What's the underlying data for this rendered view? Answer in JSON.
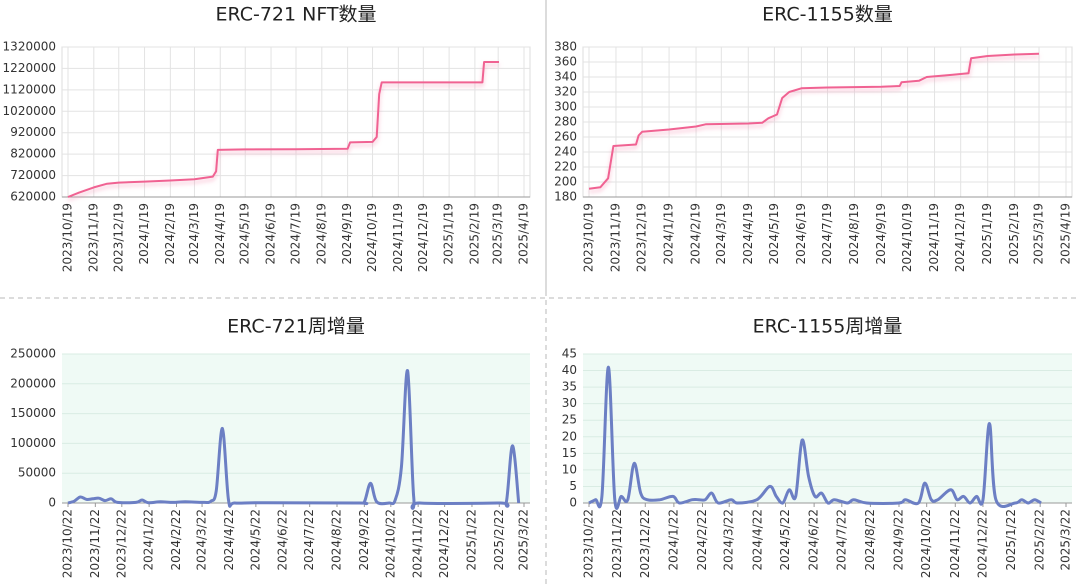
{
  "chart_data": [
    {
      "type": "line",
      "title": "ERC-721 NFT数量",
      "color": "#f06292",
      "smooth": false,
      "grid": "both",
      "x": [
        "2023/10/19",
        "2023/11/1",
        "2023/11/19",
        "2023/12/5",
        "2023/12/19",
        "2024/1/19",
        "2024/2/19",
        "2024/3/19",
        "2024/4/10",
        "2024/4/14",
        "2024/4/16",
        "2024/5/19",
        "2024/7/19",
        "2024/9/19",
        "2024/9/22",
        "2024/10/19",
        "2024/10/24",
        "2024/10/27",
        "2024/10/30",
        "2025/2/28",
        "2025/3/2",
        "2025/3/20"
      ],
      "values": [
        620000,
        640000,
        665000,
        682000,
        687000,
        692000,
        697000,
        703000,
        715000,
        740000,
        840000,
        842000,
        843000,
        845000,
        875000,
        877000,
        900000,
        1100000,
        1155000,
        1155000,
        1250000,
        1250000
      ],
      "xlim": [
        "2023/10/19",
        "2025/4/19"
      ],
      "xticks": [
        "2023/10/19",
        "2023/11/19",
        "2023/12/19",
        "2024/1/19",
        "2024/2/19",
        "2024/3/19",
        "2024/4/19",
        "2024/5/19",
        "2024/6/19",
        "2024/7/19",
        "2024/8/19",
        "2024/9/19",
        "2024/10/19",
        "2024/11/19",
        "2024/12/19",
        "2025/1/19",
        "2025/2/19",
        "2025/3/19",
        "2025/4/19"
      ],
      "ylim": [
        620000,
        1320000
      ],
      "yticks": [
        620000,
        720000,
        820000,
        920000,
        1020000,
        1120000,
        1220000,
        1320000
      ]
    },
    {
      "type": "line",
      "title": "ERC-1155数量",
      "color": "#f06292",
      "smooth": false,
      "grid": "both",
      "x": [
        "2023/10/19",
        "2023/11/1",
        "2023/11/10",
        "2023/11/16",
        "2023/12/12",
        "2023/12/15",
        "2023/12/19",
        "2024/1/19",
        "2024/2/19",
        "2024/3/1",
        "2024/4/19",
        "2024/5/5",
        "2024/5/12",
        "2024/5/22",
        "2024/5/28",
        "2024/6/5",
        "2024/6/19",
        "2024/7/19",
        "2024/9/19",
        "2024/10/10",
        "2024/10/12",
        "2024/11/1",
        "2024/11/10",
        "2024/12/10",
        "2024/12/28",
        "2024/12/31",
        "2025/1/19",
        "2025/2/19",
        "2025/3/19"
      ],
      "values": [
        191,
        193,
        205,
        248,
        250,
        262,
        267,
        270,
        274,
        277,
        278,
        279,
        285,
        290,
        312,
        320,
        325,
        326,
        327,
        328,
        333,
        335,
        340,
        343,
        345,
        365,
        368,
        370,
        371
      ],
      "xlim": [
        "2023/10/19",
        "2025/4/19"
      ],
      "xticks": [
        "2023/10/19",
        "2023/11/19",
        "2023/12/19",
        "2024/1/19",
        "2024/2/19",
        "2024/3/19",
        "2024/4/19",
        "2024/5/19",
        "2024/6/19",
        "2024/7/19",
        "2024/8/19",
        "2024/9/19",
        "2024/10/19",
        "2024/11/19",
        "2024/12/19",
        "2025/1/19",
        "2025/2/19",
        "2025/3/19",
        "2025/4/19"
      ],
      "ylim": [
        180,
        380
      ],
      "yticks": [
        180,
        200,
        220,
        240,
        260,
        280,
        300,
        320,
        340,
        360,
        380
      ]
    },
    {
      "type": "line",
      "title": "ERC-721周增量",
      "color": "#6c7fc4",
      "smooth": true,
      "grid": "y",
      "x": [
        "2023/10/22",
        "2023/10/29",
        "2023/11/5",
        "2023/11/12",
        "2023/11/19",
        "2023/11/26",
        "2023/12/3",
        "2023/12/10",
        "2023/12/17",
        "2024/1/7",
        "2024/1/14",
        "2024/1/21",
        "2024/2/4",
        "2024/2/18",
        "2024/3/3",
        "2024/3/24",
        "2024/4/1",
        "2024/4/7",
        "2024/4/14",
        "2024/4/21",
        "2024/4/28",
        "2024/6/2",
        "2024/9/15",
        "2024/9/22",
        "2024/9/29",
        "2024/10/6",
        "2024/10/20",
        "2024/10/27",
        "2024/11/3",
        "2024/11/10",
        "2024/11/17",
        "2024/11/24",
        "2025/2/23",
        "2025/3/2",
        "2025/3/9",
        "2025/3/16"
      ],
      "values": [
        0,
        3000,
        10000,
        6000,
        7000,
        8000,
        4000,
        7000,
        1000,
        1000,
        5000,
        500,
        2000,
        1000,
        2000,
        1000,
        3000,
        20000,
        125000,
        5000,
        0,
        500,
        0,
        2000,
        33000,
        2000,
        0,
        5000,
        60000,
        222000,
        10000,
        0,
        0,
        2000,
        96000,
        0
      ],
      "xlim": [
        "2023/10/22",
        "2025/3/22"
      ],
      "xticks": [
        "2023/10/22",
        "2023/11/22",
        "2023/12/22",
        "2024/1/22",
        "2024/2/22",
        "2024/3/22",
        "2024/4/22",
        "2024/5/22",
        "2024/6/22",
        "2024/7/22",
        "2024/8/22",
        "2024/9/22",
        "2024/10/22",
        "2024/11/22",
        "2024/12/22",
        "2025/1/22",
        "2025/2/22",
        "2025/3/22"
      ],
      "ylim": [
        0,
        250000
      ],
      "yticks": [
        0,
        50000,
        100000,
        150000,
        200000,
        250000
      ]
    },
    {
      "type": "line",
      "title": "ERC-1155周增量",
      "color": "#6c7fc4",
      "smooth": true,
      "grid": "y",
      "x": [
        "2023/10/22",
        "2023/10/29",
        "2023/11/5",
        "2023/11/12",
        "2023/11/19",
        "2023/11/26",
        "2023/12/3",
        "2023/12/10",
        "2023/12/17",
        "2023/12/24",
        "2024/1/7",
        "2024/1/21",
        "2024/1/28",
        "2024/2/11",
        "2024/2/18",
        "2024/2/25",
        "2024/3/3",
        "2024/3/10",
        "2024/3/24",
        "2024/3/31",
        "2024/4/21",
        "2024/5/5",
        "2024/5/12",
        "2024/5/19",
        "2024/5/26",
        "2024/6/2",
        "2024/6/9",
        "2024/6/16",
        "2024/6/23",
        "2024/6/30",
        "2024/7/7",
        "2024/7/14",
        "2024/7/28",
        "2024/8/4",
        "2024/8/18",
        "2024/9/22",
        "2024/9/29",
        "2024/10/13",
        "2024/10/20",
        "2024/10/27",
        "2024/11/3",
        "2024/11/17",
        "2024/11/24",
        "2024/12/1",
        "2024/12/8",
        "2024/12/15",
        "2024/12/22",
        "2024/12/29",
        "2025/1/5",
        "2025/1/26",
        "2025/2/2",
        "2025/2/9",
        "2025/2/16",
        "2025/2/23"
      ],
      "values": [
        0,
        1,
        2,
        41,
        1,
        2,
        1,
        12,
        3,
        1,
        1,
        2,
        0,
        1,
        1,
        1,
        3,
        0,
        1,
        0,
        1,
        5,
        2,
        0,
        4,
        2,
        19,
        8,
        2,
        3,
        0,
        1,
        0,
        1,
        0,
        0,
        1,
        0,
        6,
        1,
        1,
        4,
        1,
        2,
        0,
        2,
        1,
        24,
        1,
        0,
        1,
        0,
        1,
        0
      ],
      "xlim": [
        "2023/10/22",
        "2025/3/22"
      ],
      "xticks": [
        "2023/10/22",
        "2023/11/22",
        "2023/12/22",
        "2024/1/22",
        "2024/2/22",
        "2024/3/22",
        "2024/4/22",
        "2024/5/22",
        "2024/6/22",
        "2024/7/22",
        "2024/8/22",
        "2024/9/22",
        "2024/10/22",
        "2024/11/22",
        "2024/12/22",
        "2025/1/22",
        "2025/2/22",
        "2025/3/22"
      ],
      "ylim": [
        0,
        45
      ],
      "yticks": [
        0,
        5,
        10,
        15,
        20,
        25,
        30,
        35,
        40,
        45
      ]
    }
  ]
}
